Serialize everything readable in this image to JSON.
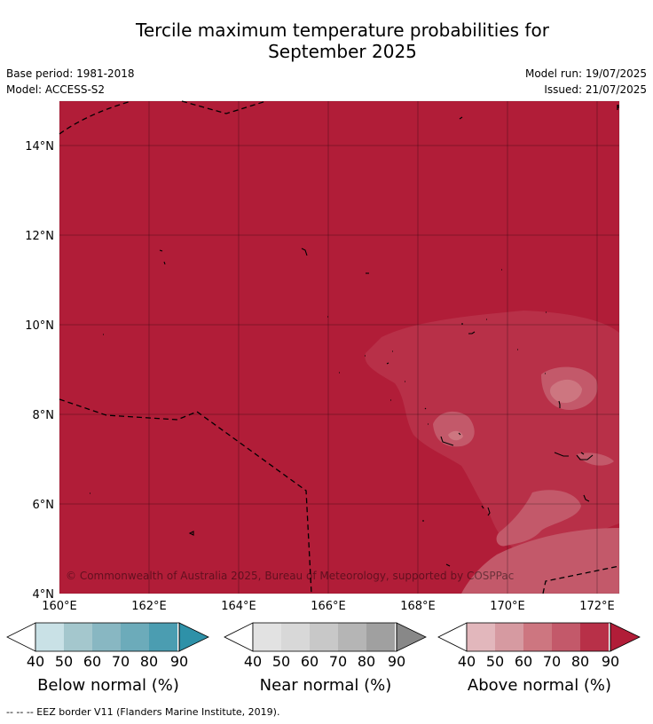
{
  "title": {
    "line1": "Tercile maximum temperature probabilities for",
    "line2": "September 2025"
  },
  "meta": {
    "base_period": "Base period: 1981-2018",
    "model": "Model: ACCESS-S2",
    "model_run": "Model run: 19/07/2025",
    "issued": "Issued: 21/07/2025"
  },
  "map": {
    "x_ticks": [
      "160°E",
      "162°E",
      "164°E",
      "166°E",
      "168°E",
      "170°E",
      "172°E"
    ],
    "y_ticks": [
      "14°N",
      "12°N",
      "10°N",
      "8°N",
      "6°N",
      "4°N"
    ],
    "copyright": "© Commonwealth of Australia 2025, Bureau of Meteorology, supported by COSPPac",
    "background_color": "#b11d38",
    "eez_style": "dashed"
  },
  "colorbars": [
    {
      "label": "Below normal (%)",
      "ticks": [
        "40",
        "50",
        "60",
        "70",
        "80",
        "90"
      ],
      "colors": [
        "#c9e1e6",
        "#a4c7cd",
        "#88b7c2",
        "#6cabba",
        "#4b9db1",
        "#2e91a8"
      ]
    },
    {
      "label": "Near normal (%)",
      "ticks": [
        "40",
        "50",
        "60",
        "70",
        "80",
        "90"
      ],
      "colors": [
        "#e2e2e2",
        "#d8d8d8",
        "#c8c8c8",
        "#b5b5b5",
        "#a0a0a0",
        "#888888"
      ]
    },
    {
      "label": "Above normal (%)",
      "ticks": [
        "40",
        "50",
        "60",
        "70",
        "80",
        "90"
      ],
      "colors": [
        "#e2b7bc",
        "#d69aa1",
        "#cd7680",
        "#c3596a",
        "#b83048",
        "#b11d38"
      ]
    }
  ],
  "footer": "-- -- -- EEZ border V11 (Flanders Marine Institute, 2019)."
}
